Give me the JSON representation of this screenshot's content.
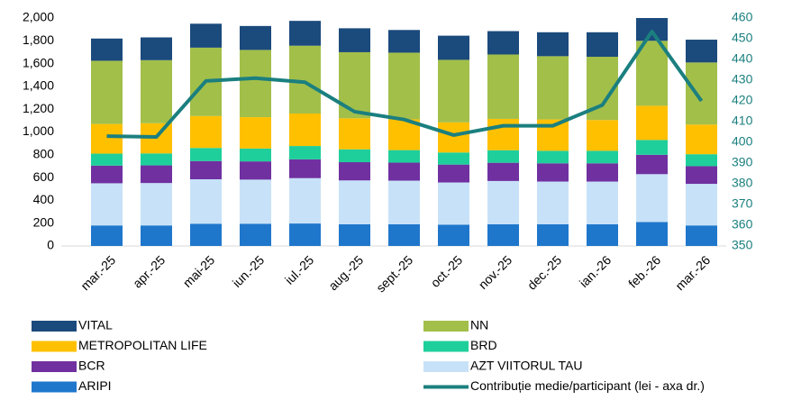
{
  "chart_data": {
    "type": "bar",
    "stacked": true,
    "categories": [
      "mar.-25",
      "apr.-25",
      "mai-25",
      "iun.-25",
      "iul.-25",
      "aug.-25",
      "sept.-25",
      "oct.-25",
      "nov.-25",
      "dec.-25",
      "ian.-26",
      "feb.-26",
      "mar.-26"
    ],
    "series": [
      {
        "name": "VITAL",
        "color": "#1b4a7c",
        "values": [
          195,
          200,
          210,
          210,
          218,
          210,
          199,
          212,
          205,
          210,
          215,
          200,
          200
        ]
      },
      {
        "name": "NN",
        "color": "#a2bf4a",
        "values": [
          555,
          553,
          600,
          590,
          595,
          580,
          585,
          548,
          565,
          555,
          555,
          570,
          545
        ]
      },
      {
        "name": "METROPOLITAN LIFE",
        "color": "#ffc000",
        "values": [
          260,
          265,
          280,
          275,
          285,
          272,
          270,
          265,
          275,
          275,
          270,
          300,
          260
        ]
      },
      {
        "name": "BRD",
        "color": "#1fcf9b",
        "values": [
          105,
          105,
          115,
          113,
          117,
          113,
          110,
          106,
          110,
          110,
          110,
          130,
          105
        ]
      },
      {
        "name": "BCR",
        "color": "#7030a0",
        "values": [
          155,
          155,
          160,
          160,
          165,
          160,
          158,
          157,
          160,
          160,
          160,
          170,
          155
        ]
      },
      {
        "name": "AZT VIITORUL TAU",
        "color": "#c7e2f8",
        "values": [
          370,
          372,
          390,
          387,
          398,
          385,
          383,
          370,
          380,
          375,
          375,
          420,
          365
        ]
      },
      {
        "name": "ARIPI",
        "color": "#1f77cc",
        "values": [
          180,
          180,
          195,
          195,
          197,
          190,
          190,
          187,
          190,
          190,
          190,
          210,
          180
        ]
      },
      {
        "name": "Contribuție medie/participant (lei - axa dr.)",
        "color": "#1b7f7f",
        "type": "line",
        "axis": "y2",
        "values": [
          403,
          402.6,
          429.6,
          431,
          429,
          414.8,
          411,
          403.5,
          408,
          408,
          418,
          453.5,
          420
        ]
      }
    ],
    "ylim": [
      0,
      2000
    ],
    "yticks": [
      0,
      200,
      400,
      600,
      800,
      {
        "value": 1000,
        "label": "1,000"
      },
      {
        "value": 1200,
        "label": "1,200"
      },
      {
        "value": 1400,
        "label": "1,400"
      },
      {
        "value": 1600,
        "label": "1,600"
      },
      {
        "value": 1800,
        "label": "1,800"
      },
      {
        "value": 2000,
        "label": "2,000"
      }
    ],
    "y2lim": [
      350,
      460
    ],
    "y2ticks": [
      350,
      360,
      370,
      380,
      390,
      400,
      410,
      420,
      430,
      440,
      450,
      460
    ]
  }
}
